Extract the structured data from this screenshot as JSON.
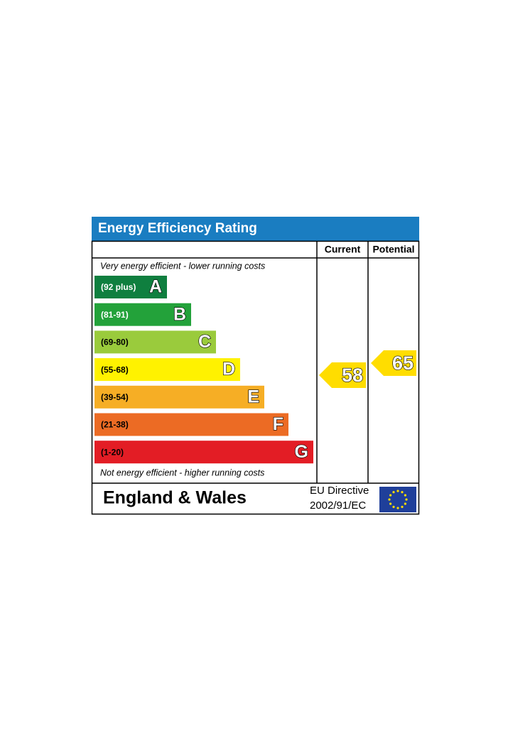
{
  "header": {
    "title": "Energy Efficiency Rating",
    "current": "Current",
    "potential": "Potential"
  },
  "top_note": "Very energy efficient - lower running costs",
  "bands": [
    {
      "range": "(92 plus)",
      "letter": "A",
      "color": "#0f7f3f"
    },
    {
      "range": "(81-91)",
      "letter": "B",
      "color": "#23a23a"
    },
    {
      "range": "(69-80)",
      "letter": "C",
      "color": "#9acb3c"
    },
    {
      "range": "(55-68)",
      "letter": "D",
      "color": "#fff200"
    },
    {
      "range": "(39-54)",
      "letter": "E",
      "color": "#f6ae25"
    },
    {
      "range": "(21-38)",
      "letter": "F",
      "color": "#ec6b24"
    },
    {
      "range": "(1-20)",
      "letter": "G",
      "color": "#e31d25"
    }
  ],
  "bottom_note": "Not energy efficient - higher running costs",
  "current": {
    "value": 58,
    "color": "#ffdd00"
  },
  "potential": {
    "value": 65,
    "color": "#ffdd00"
  },
  "footer": {
    "region": "England & Wales",
    "directive": "EU Directive",
    "code": "2002/91/EC"
  }
}
